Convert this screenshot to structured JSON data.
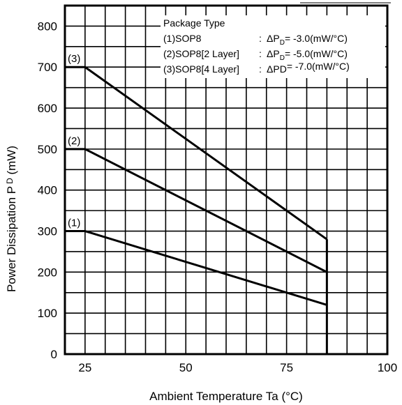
{
  "chart_data": {
    "type": "line",
    "title": "",
    "xlabel": "Ambient Temperature Ta (°C)",
    "ylabel_main": "Power Dissipation P",
    "ylabel_sub": "D",
    "ylabel_unit": " (mW)",
    "xlim": [
      20,
      100
    ],
    "ylim": [
      0,
      850
    ],
    "x_ticks": [
      {
        "value": 25,
        "label": "25"
      },
      {
        "value": 50,
        "label": "50"
      },
      {
        "value": 75,
        "label": "75"
      },
      {
        "value": 100,
        "label": "100"
      }
    ],
    "y_ticks": [
      {
        "value": 0,
        "label": "0"
      },
      {
        "value": 100,
        "label": "100"
      },
      {
        "value": 200,
        "label": "200"
      },
      {
        "value": 300,
        "label": "300"
      },
      {
        "value": 400,
        "label": "400"
      },
      {
        "value": 500,
        "label": "500"
      },
      {
        "value": 600,
        "label": "600"
      },
      {
        "value": 700,
        "label": "700"
      },
      {
        "value": 800,
        "label": "800"
      }
    ],
    "grid": true,
    "grid_x_step": 5,
    "grid_y_step": 50,
    "cutoff_x": 85,
    "series": [
      {
        "tag": "(1)",
        "x": [
          20,
          25,
          85
        ],
        "y": [
          300,
          300,
          120
        ]
      },
      {
        "tag": "(2)",
        "x": [
          20,
          25,
          85
        ],
        "y": [
          500,
          500,
          200
        ]
      },
      {
        "tag": "(3)",
        "x": [
          20,
          25,
          85
        ],
        "y": [
          700,
          700,
          280
        ]
      }
    ],
    "legend": {
      "placement": "top-right",
      "title": "Package Type",
      "rows": [
        {
          "name": "(1)SOP8",
          "sep": ":",
          "delta": "ΔP",
          "sub": "D",
          "value": "= -3.0(mW/°C)"
        },
        {
          "name": "(2)SOP8[2 Layer]",
          "sep": ":",
          "delta": "ΔP",
          "sub": "D",
          "value": "= -5.0(mW/°C)"
        },
        {
          "name": "(3)SOP8[4 Layer]",
          "sep": ":",
          "delta": "ΔPD",
          "sub": "",
          "value": "= -7.0(mW/°C)"
        }
      ]
    }
  }
}
